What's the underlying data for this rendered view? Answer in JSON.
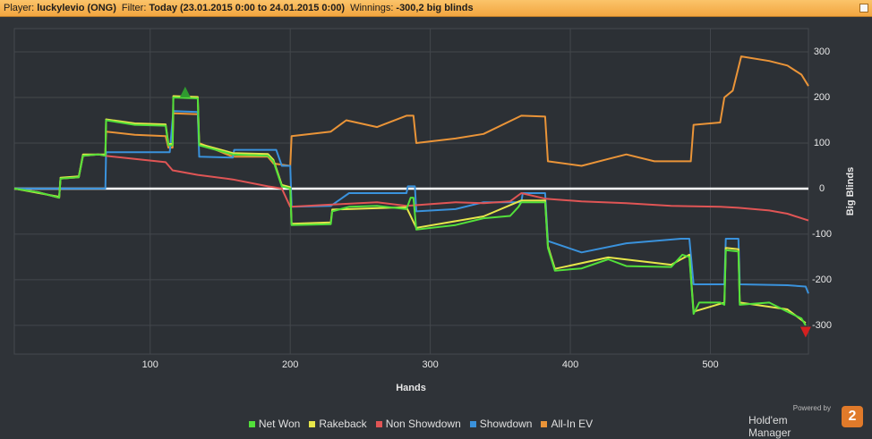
{
  "header": [
    {
      "label": "Player:",
      "value": "luckylevio (ONG)"
    },
    {
      "label": "Filter:",
      "value": "Today (23.01.2015 0:00 to 24.01.2015 0:00)"
    },
    {
      "label": "Winnings:",
      "value": "-300,2 big blinds"
    }
  ],
  "chart_data": {
    "type": "line",
    "x_label": "Hands",
    "y_label": "Big Blinds",
    "xlim": [
      3,
      570
    ],
    "xticks": [
      100,
      200,
      300,
      400,
      500
    ],
    "ylim": [
      -363,
      351
    ],
    "yticks": [
      -300,
      -200,
      -100,
      0,
      100,
      200,
      300
    ],
    "grid": true,
    "zero_line": true,
    "legend": "bottom",
    "series": [
      {
        "name": "Net Won",
        "color": "#52e03a",
        "x": [
          3,
          20,
          35,
          36,
          49,
          52,
          63,
          68,
          68.5,
          89,
          111,
          113,
          116,
          116.5,
          134,
          135,
          159,
          184,
          188,
          194,
          200,
          201,
          229,
          230,
          242,
          262,
          283,
          286,
          288,
          290,
          318,
          338,
          357,
          363,
          365,
          382,
          384,
          389,
          408,
          427,
          440,
          472,
          480,
          485,
          488,
          492,
          507,
          510,
          511,
          520,
          521,
          542,
          555,
          565,
          568
        ],
        "values": [
          0,
          -8,
          -20,
          22,
          25,
          72,
          75,
          72,
          150,
          140,
          138,
          95,
          95,
          200,
          198,
          95,
          75,
          72,
          60,
          5,
          0,
          -80,
          -78,
          -50,
          -40,
          -38,
          -45,
          -20,
          -20,
          -90,
          -80,
          -65,
          -60,
          -40,
          -30,
          -30,
          -130,
          -180,
          -175,
          -155,
          -170,
          -172,
          -145,
          -150,
          -275,
          -250,
          -250,
          -255,
          -135,
          -138,
          -255,
          -250,
          -270,
          -285,
          -300
        ]
      },
      {
        "name": "Rakeback",
        "color": "#e6e64a",
        "x": [
          3,
          35,
          36,
          49,
          52,
          68,
          68.5,
          89,
          111,
          113,
          116,
          116.5,
          134,
          135,
          159,
          184,
          188,
          194,
          200,
          201,
          229,
          230,
          283,
          290,
          338,
          365,
          382,
          384,
          389,
          427,
          472,
          485,
          488,
          510,
          511,
          520,
          521,
          555,
          568
        ],
        "values": [
          0,
          -18,
          24,
          27,
          75,
          75,
          152,
          143,
          141,
          98,
          98,
          203,
          201,
          98,
          78,
          76,
          63,
          8,
          3,
          -77,
          -74,
          -46,
          -41,
          -86,
          -61,
          -26,
          -26,
          -126,
          -176,
          -151,
          -167,
          -145,
          -270,
          -250,
          -130,
          -133,
          -250,
          -265,
          -295
        ]
      },
      {
        "name": "Non Showdown",
        "color": "#e05555",
        "x": [
          3,
          20,
          35,
          36,
          49,
          52,
          63,
          68,
          89,
          111,
          116,
          134,
          159,
          184,
          194,
          200,
          230,
          262,
          283,
          318,
          338,
          357,
          365,
          382,
          408,
          440,
          472,
          507,
          520,
          542,
          555,
          570
        ],
        "values": [
          0,
          -8,
          -20,
          22,
          25,
          72,
          75,
          72,
          65,
          58,
          40,
          30,
          20,
          5,
          0,
          -40,
          -35,
          -30,
          -38,
          -30,
          -32,
          -28,
          -10,
          -22,
          -28,
          -32,
          -38,
          -40,
          -42,
          -48,
          -55,
          -70
        ]
      },
      {
        "name": "Showdown",
        "color": "#3a92dc",
        "x": [
          3,
          68,
          68.5,
          114,
          116.5,
          134,
          135,
          159,
          160,
          190,
          194,
          200,
          201,
          229,
          242,
          283,
          284,
          289,
          290,
          318,
          338,
          365,
          366,
          382,
          384,
          408,
          440,
          479,
          485,
          488,
          510,
          511,
          520,
          521,
          555,
          568,
          570
        ],
        "values": [
          0,
          0,
          80,
          80,
          170,
          168,
          70,
          68,
          85,
          85,
          50,
          50,
          -40,
          -38,
          -10,
          -10,
          5,
          5,
          -50,
          -45,
          -30,
          -30,
          -10,
          -10,
          -115,
          -140,
          -120,
          -110,
          -110,
          -210,
          -210,
          -110,
          -110,
          -210,
          -212,
          -215,
          -230
        ]
      },
      {
        "name": "All-In EV",
        "color": "#ea9438",
        "x": [
          3,
          20,
          35,
          36,
          49,
          52,
          63,
          68,
          68.5,
          89,
          111,
          113,
          116,
          116.5,
          134,
          135,
          159,
          184,
          188,
          200,
          201,
          229,
          240,
          262,
          283,
          288,
          290,
          318,
          338,
          365,
          382,
          384,
          408,
          427,
          440,
          460,
          486,
          488,
          507,
          510,
          516,
          522,
          542,
          555,
          565,
          570
        ],
        "values": [
          0,
          -8,
          -20,
          22,
          25,
          72,
          75,
          72,
          125,
          118,
          115,
          90,
          90,
          165,
          163,
          100,
          70,
          70,
          55,
          50,
          115,
          125,
          150,
          135,
          160,
          160,
          100,
          110,
          120,
          160,
          158,
          60,
          50,
          65,
          75,
          60,
          60,
          140,
          145,
          200,
          215,
          290,
          280,
          270,
          250,
          225
        ]
      }
    ],
    "markers": [
      {
        "x": 125,
        "y": 212,
        "color": "#2f9a2f",
        "direction": "up"
      },
      {
        "x": 568,
        "y": -315,
        "color": "#d42020",
        "direction": "down"
      }
    ]
  },
  "branding": {
    "powered": "Powered by",
    "name": "Hold'em Manager",
    "version": "2"
  }
}
